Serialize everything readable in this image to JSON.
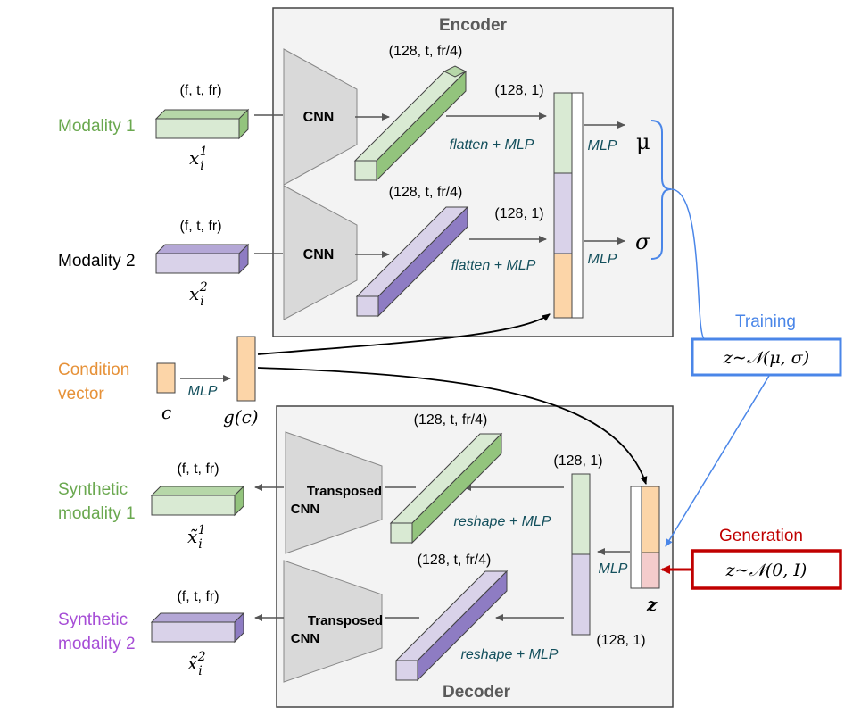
{
  "colors": {
    "green": "#d9ead3",
    "green_text": "#6aa84f",
    "purple": "#d9d2e9",
    "purple_text": "#a64dd6",
    "orange": "#fcd5a8",
    "orange_text": "#e69138",
    "pink": "#f4cccc",
    "blue": "#4a86e8",
    "red": "#c00000",
    "teal_text": "#134f5c",
    "panel": "#f3f3f3"
  },
  "encoder": {
    "title": "Encoder",
    "cnn1": "CNN",
    "cnn2": "CNN",
    "feat1_dim": "(128, t, fr/4)",
    "feat2_dim": "(128, t, fr/4)",
    "vec1_dim": "(128, 1)",
    "vec2_dim": "(128, 1)",
    "flatten1": "flatten + MLP",
    "flatten2": "flatten + MLP",
    "mlp_mu": "MLP",
    "mlp_sigma": "MLP",
    "mu": "μ",
    "sigma": "σ"
  },
  "inputs": {
    "modality1_label": "Modality 1",
    "modality2_label": "Modality 2",
    "input1_dim": "(f, t, fr)",
    "input2_dim": "(f, t, fr)",
    "x1_base": "x",
    "x1_sub": "i",
    "x1_sup": "1",
    "x2_base": "x",
    "x2_sub": "i",
    "x2_sup": "2"
  },
  "condition": {
    "label_line1": "Condition",
    "label_line2": "vector",
    "c": "c",
    "mlp": "MLP",
    "gc": "g(c)"
  },
  "decoder": {
    "title": "Decoder",
    "tcnn1_line1": "Transposed",
    "tcnn1_line2": "CNN",
    "tcnn2_line1": "Transposed",
    "tcnn2_line2": "CNN",
    "feat1_dim": "(128, t, fr/4)",
    "feat2_dim": "(128, t, fr/4)",
    "vec_top_dim": "(128, 1)",
    "vec_bot_dim": "(128, 1)",
    "reshape1": "reshape + MLP",
    "reshape2": "reshape + MLP",
    "mlp": "MLP",
    "z": "z"
  },
  "outputs": {
    "synth1_line1": "Synthetic",
    "synth1_line2": "modality 1",
    "synth2_line1": "Synthetic",
    "synth2_line2": "modality 2",
    "out1_dim": "(f, t, fr)",
    "out2_dim": "(f, t, fr)",
    "x1_base": "x̃",
    "x1_sub": "i",
    "x1_sup": "1",
    "x2_base": "x̃",
    "x2_sub": "i",
    "x2_sup": "2"
  },
  "training": {
    "label": "Training",
    "formula": "z∼𝒩(μ, σ)"
  },
  "generation": {
    "label": "Generation",
    "formula": "z∼𝒩(0, I)"
  }
}
